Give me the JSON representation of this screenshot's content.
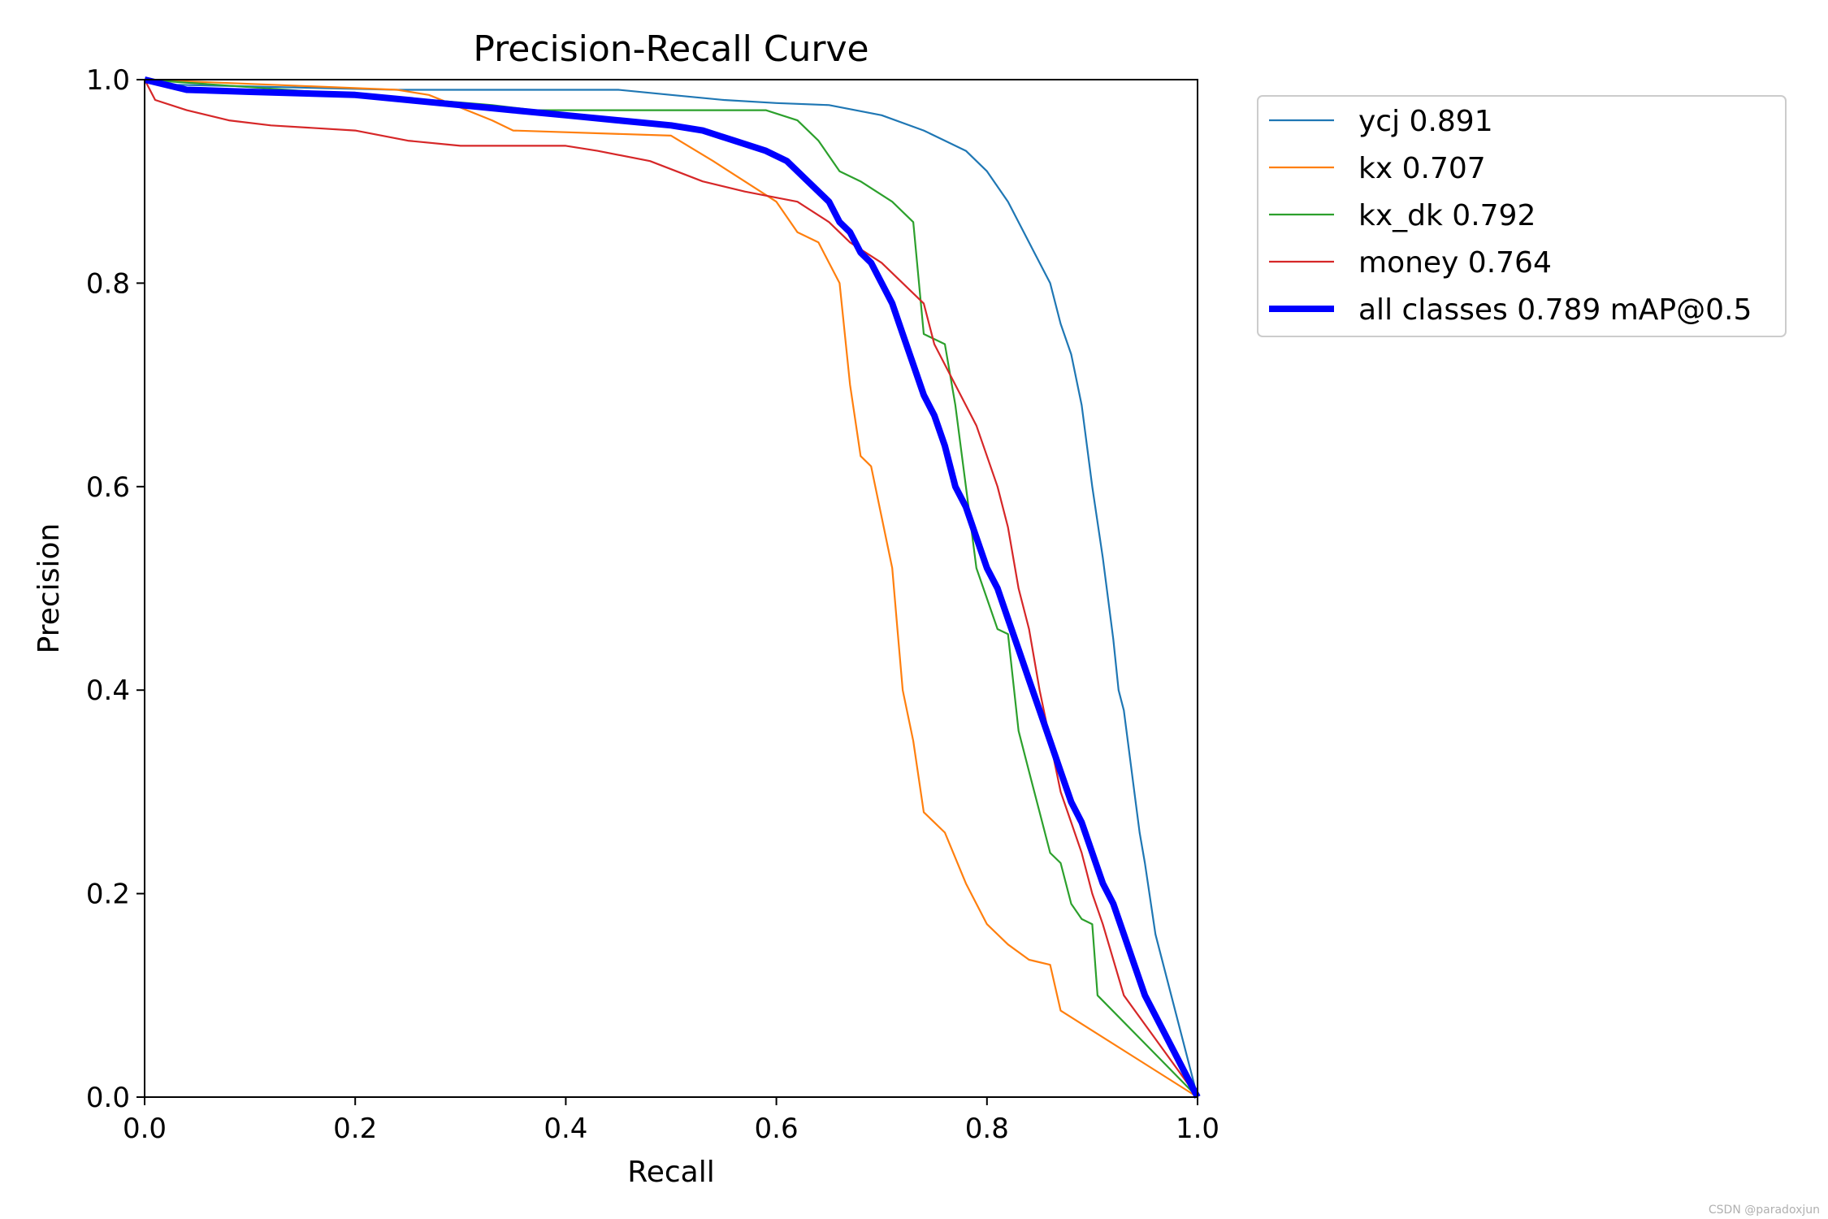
{
  "chart_data": {
    "type": "line",
    "title": "Precision-Recall Curve",
    "xlabel": "Recall",
    "ylabel": "Precision",
    "xlim": [
      0,
      1
    ],
    "ylim": [
      0,
      1
    ],
    "xticks": [
      "0.0",
      "0.2",
      "0.4",
      "0.6",
      "0.8",
      "1.0"
    ],
    "yticks": [
      "0.0",
      "0.2",
      "0.4",
      "0.6",
      "0.8",
      "1.0"
    ],
    "legend_position": "outside-top-right",
    "series": [
      {
        "name": "ycj",
        "legend_label": "ycj 0.891",
        "color": "#1f77b4",
        "x": [
          0,
          0.03,
          0.24,
          0.3,
          0.45,
          0.5,
          0.55,
          0.6,
          0.65,
          0.7,
          0.74,
          0.76,
          0.78,
          0.8,
          0.82,
          0.84,
          0.86,
          0.87,
          0.88,
          0.89,
          0.9,
          0.91,
          0.92,
          0.925,
          0.93,
          0.94,
          0.945,
          0.95,
          0.96,
          1.0
        ],
        "y": [
          1.0,
          0.995,
          0.99,
          0.99,
          0.99,
          0.985,
          0.98,
          0.977,
          0.975,
          0.965,
          0.95,
          0.94,
          0.93,
          0.91,
          0.88,
          0.84,
          0.8,
          0.76,
          0.73,
          0.68,
          0.6,
          0.53,
          0.45,
          0.4,
          0.38,
          0.3,
          0.26,
          0.23,
          0.16,
          0.0
        ]
      },
      {
        "name": "kx",
        "legend_label": "kx 0.707",
        "color": "#ff7f0e",
        "x": [
          0,
          0.24,
          0.27,
          0.33,
          0.35,
          0.5,
          0.54,
          0.57,
          0.6,
          0.62,
          0.64,
          0.65,
          0.66,
          0.67,
          0.68,
          0.69,
          0.7,
          0.71,
          0.715,
          0.72,
          0.73,
          0.74,
          0.76,
          0.78,
          0.8,
          0.82,
          0.84,
          0.86,
          0.87,
          1.0
        ],
        "y": [
          1.0,
          0.99,
          0.985,
          0.96,
          0.95,
          0.945,
          0.92,
          0.9,
          0.88,
          0.85,
          0.84,
          0.82,
          0.8,
          0.7,
          0.63,
          0.62,
          0.57,
          0.52,
          0.46,
          0.4,
          0.35,
          0.28,
          0.26,
          0.21,
          0.17,
          0.15,
          0.135,
          0.13,
          0.085,
          0.0
        ]
      },
      {
        "name": "kx_dk",
        "legend_label": "kx_dk 0.792",
        "color": "#2ca02c",
        "x": [
          0,
          0.27,
          0.33,
          0.37,
          0.5,
          0.59,
          0.62,
          0.64,
          0.66,
          0.68,
          0.71,
          0.73,
          0.74,
          0.76,
          0.77,
          0.78,
          0.79,
          0.8,
          0.81,
          0.82,
          0.83,
          0.84,
          0.85,
          0.86,
          0.87,
          0.88,
          0.89,
          0.9,
          0.905,
          1.0
        ],
        "y": [
          1.0,
          0.98,
          0.975,
          0.97,
          0.97,
          0.97,
          0.96,
          0.94,
          0.91,
          0.9,
          0.88,
          0.86,
          0.75,
          0.74,
          0.68,
          0.6,
          0.52,
          0.49,
          0.46,
          0.455,
          0.36,
          0.32,
          0.28,
          0.24,
          0.23,
          0.19,
          0.175,
          0.17,
          0.1,
          0.0
        ]
      },
      {
        "name": "money",
        "legend_label": "money 0.764",
        "color": "#d62728",
        "x": [
          0,
          0.01,
          0.04,
          0.08,
          0.12,
          0.2,
          0.25,
          0.3,
          0.35,
          0.4,
          0.43,
          0.48,
          0.53,
          0.57,
          0.62,
          0.65,
          0.67,
          0.7,
          0.72,
          0.74,
          0.75,
          0.77,
          0.79,
          0.8,
          0.81,
          0.82,
          0.83,
          0.84,
          0.85,
          0.86,
          0.87,
          0.88,
          0.89,
          0.9,
          0.91,
          0.93,
          1.0
        ],
        "y": [
          1.0,
          0.98,
          0.97,
          0.96,
          0.955,
          0.95,
          0.94,
          0.935,
          0.935,
          0.935,
          0.93,
          0.92,
          0.9,
          0.89,
          0.88,
          0.86,
          0.84,
          0.82,
          0.8,
          0.78,
          0.74,
          0.7,
          0.66,
          0.63,
          0.6,
          0.56,
          0.5,
          0.46,
          0.4,
          0.35,
          0.3,
          0.27,
          0.24,
          0.2,
          0.17,
          0.1,
          0.0
        ]
      },
      {
        "name": "all classes",
        "legend_label": "all classes 0.789 mAP@0.5",
        "color": "#0000ff",
        "thick": true,
        "x": [
          0,
          0.04,
          0.1,
          0.2,
          0.25,
          0.3,
          0.35,
          0.4,
          0.45,
          0.5,
          0.53,
          0.56,
          0.59,
          0.61,
          0.63,
          0.65,
          0.66,
          0.67,
          0.68,
          0.69,
          0.7,
          0.71,
          0.72,
          0.73,
          0.74,
          0.75,
          0.76,
          0.77,
          0.78,
          0.79,
          0.8,
          0.81,
          0.82,
          0.83,
          0.84,
          0.85,
          0.86,
          0.87,
          0.88,
          0.89,
          0.9,
          0.91,
          0.92,
          0.93,
          0.94,
          0.95,
          0.96,
          1.0
        ],
        "y": [
          1.0,
          0.99,
          0.988,
          0.985,
          0.98,
          0.975,
          0.97,
          0.965,
          0.96,
          0.955,
          0.95,
          0.94,
          0.93,
          0.92,
          0.9,
          0.88,
          0.86,
          0.85,
          0.83,
          0.82,
          0.8,
          0.78,
          0.75,
          0.72,
          0.69,
          0.67,
          0.64,
          0.6,
          0.58,
          0.55,
          0.52,
          0.5,
          0.47,
          0.44,
          0.41,
          0.38,
          0.35,
          0.32,
          0.29,
          0.27,
          0.24,
          0.21,
          0.19,
          0.16,
          0.13,
          0.1,
          0.08,
          0.0
        ]
      }
    ]
  },
  "watermark": "CSDN @paradoxjun"
}
